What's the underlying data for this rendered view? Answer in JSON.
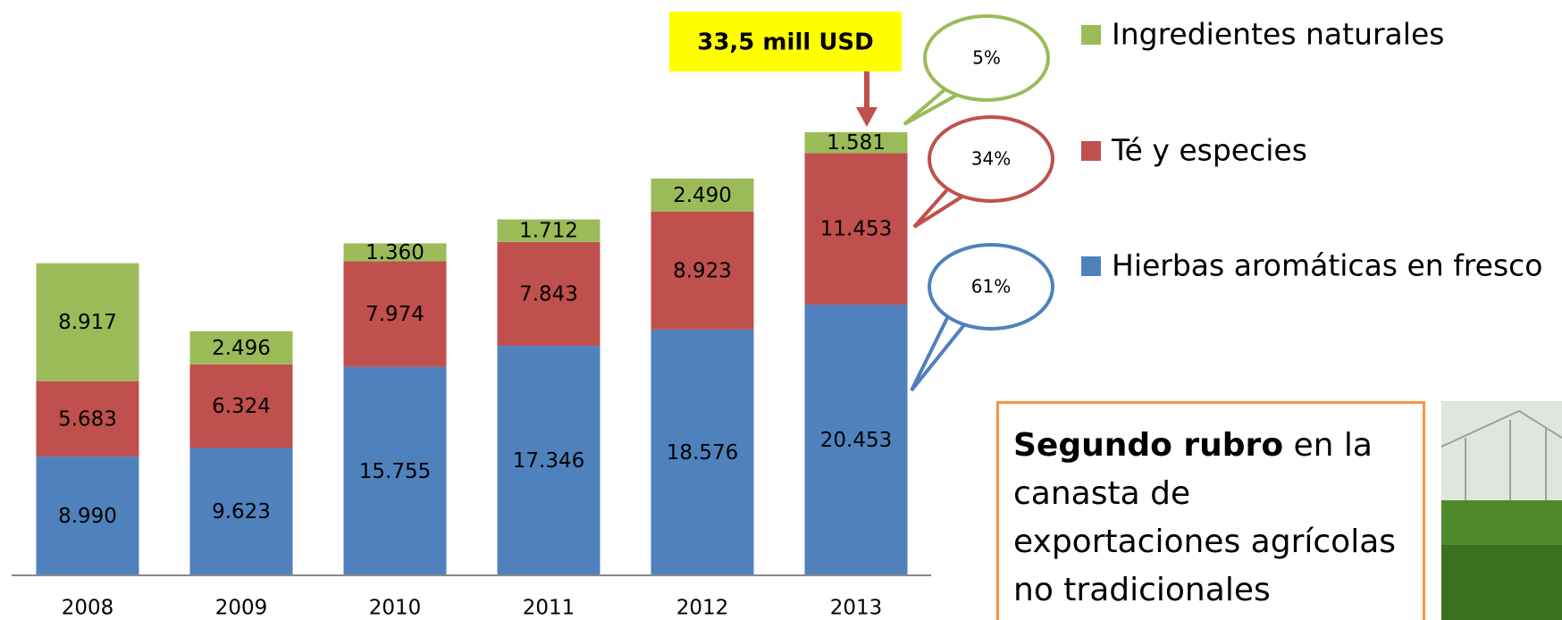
{
  "chart_data": {
    "type": "stacked_bar",
    "categories": [
      "2008",
      "2009",
      "2010",
      "2011",
      "2012",
      "2013"
    ],
    "series": [
      {
        "name": "Hierbas aromáticas en fresco",
        "color": "#4f81bd",
        "values": [
          8990,
          9623,
          15755,
          17346,
          18576,
          20453
        ],
        "value_labels": [
          "8.990",
          "9.623",
          "15.755",
          "17.346",
          "18.576",
          "20.453"
        ]
      },
      {
        "name": "Té y especies",
        "color": "#c0504d",
        "values": [
          5683,
          6324,
          7974,
          7843,
          8923,
          11453
        ],
        "value_labels": [
          "5.683",
          "6.324",
          "7.974",
          "7.843",
          "8.923",
          "11.453"
        ]
      },
      {
        "name": "Ingredientes naturales",
        "color": "#9bbb59",
        "values": [
          8917,
          2496,
          1360,
          1712,
          2490,
          1581
        ],
        "value_labels": [
          "8.917",
          "2.496",
          "1.360",
          "1.712",
          "2.490",
          "1.581"
        ]
      }
    ],
    "annotations": {
      "total": "33,5  mill USD",
      "shares": [
        "5%",
        "34%",
        "61%"
      ]
    },
    "note": {
      "bold": "Segundo rubro",
      "text": " en la canasta de exportaciones agrícolas no tradicionales"
    }
  }
}
